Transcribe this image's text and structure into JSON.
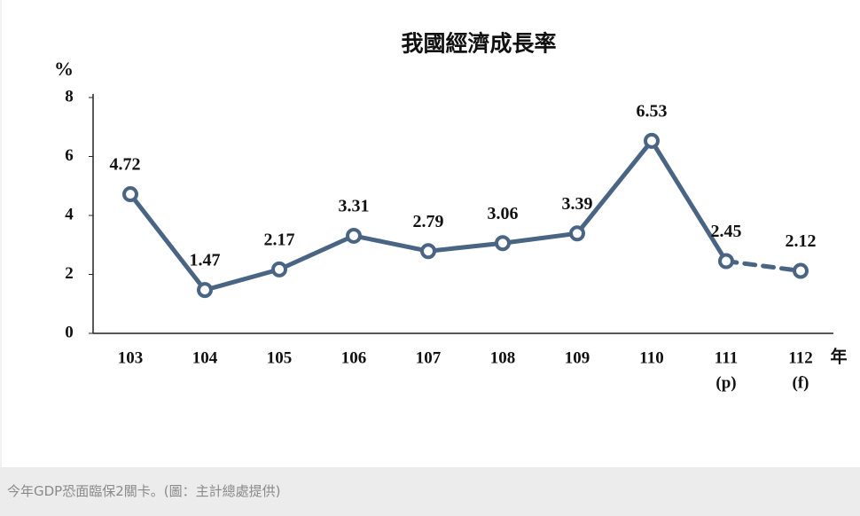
{
  "chart_data": {
    "type": "line",
    "title": "我國經濟成長率",
    "y_label": "%",
    "x_label": "年",
    "categories": [
      "103",
      "104",
      "105",
      "106",
      "107",
      "108",
      "109",
      "110",
      "111",
      "112"
    ],
    "category_notes": [
      null,
      null,
      null,
      null,
      null,
      null,
      null,
      null,
      "(p)",
      "(f)"
    ],
    "values": [
      4.72,
      1.47,
      2.17,
      3.31,
      2.79,
      3.06,
      3.39,
      6.53,
      2.45,
      2.12
    ],
    "segment_styles": [
      "solid",
      "solid",
      "solid",
      "solid",
      "solid",
      "solid",
      "solid",
      "solid",
      "dashed"
    ],
    "color": "#4a6584",
    "ylim": [
      0,
      8
    ],
    "yticks": [
      0,
      2,
      4,
      6,
      8
    ],
    "grid": false
  },
  "caption": "今年GDP恐面臨保2關卡。(圖：主計總處提供)"
}
